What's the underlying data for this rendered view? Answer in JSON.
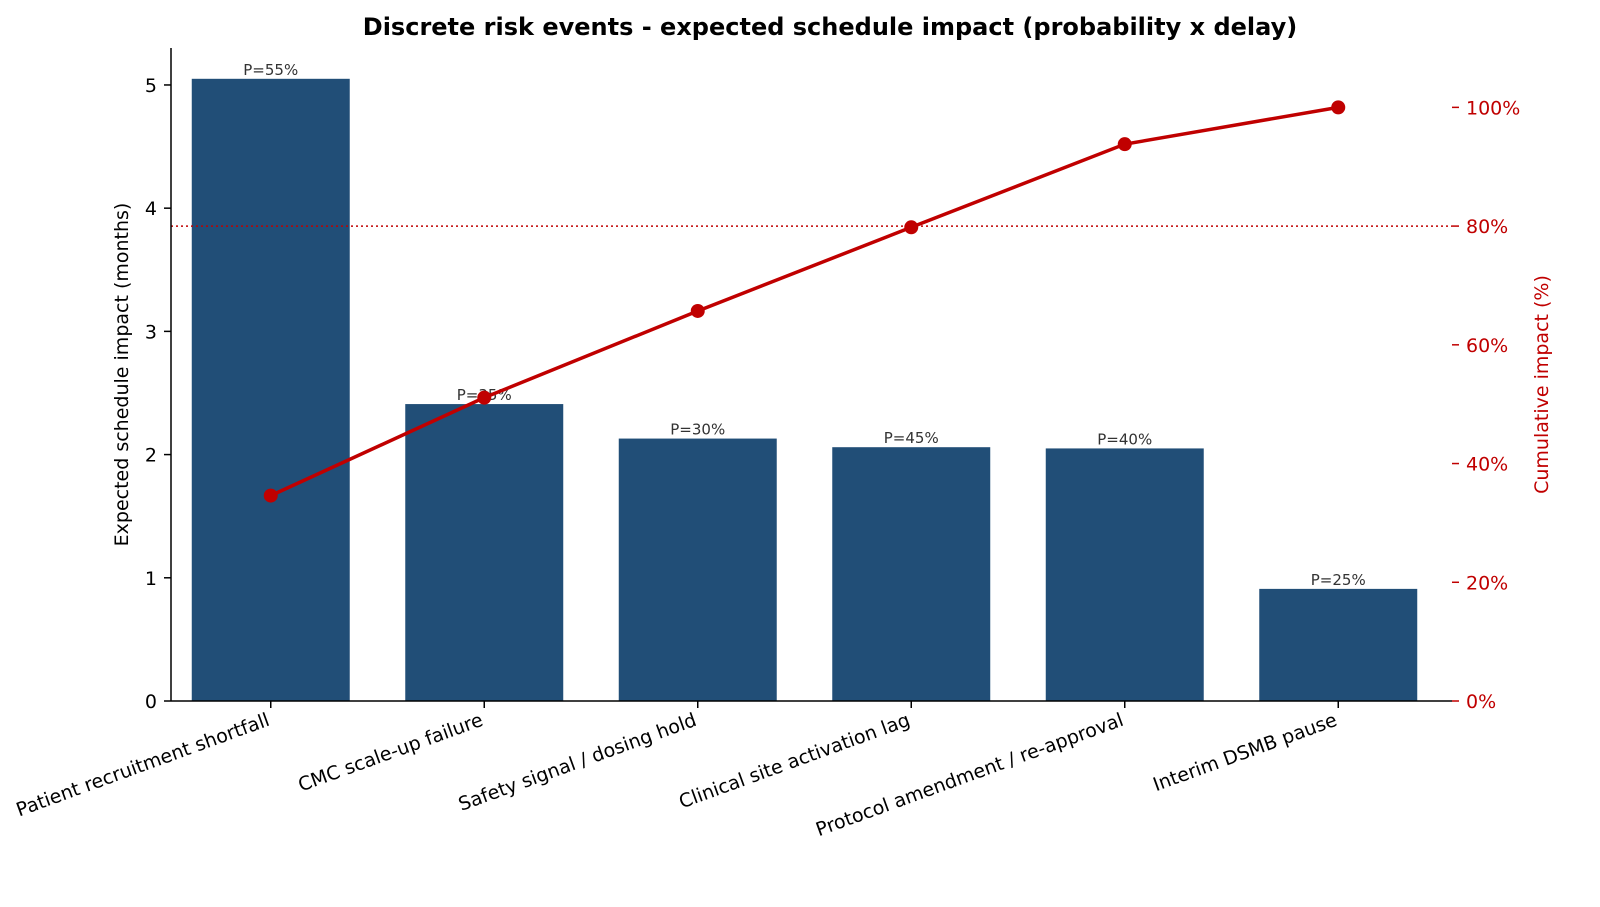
{
  "chart_data": {
    "type": "bar",
    "title": "Discrete risk events - expected schedule impact (probability x delay)",
    "xlabel": "",
    "ylabel": "Expected schedule impact  (months)",
    "y2label": "Cumulative impact  (%)",
    "categories": [
      "Patient recruitment shortfall",
      "CMC scale-up failure",
      "Safety signal / dosing hold",
      "Clinical site activation lag",
      "Protocol amendment / re-approval",
      "Interim DSMB pause"
    ],
    "values": [
      5.05,
      2.41,
      2.13,
      2.06,
      2.05,
      0.91
    ],
    "bar_labels": [
      "P=55%",
      "P=35%",
      "P=30%",
      "P=45%",
      "P=40%",
      "P=25%"
    ],
    "cumulative_percent": [
      34.6,
      51.1,
      65.7,
      79.8,
      93.8,
      100.0
    ],
    "ylim": [
      0,
      5.3
    ],
    "y2lim": [
      0,
      110
    ],
    "yticks": [
      0,
      1,
      2,
      3,
      4,
      5
    ],
    "y2ticks": [
      0,
      20,
      40,
      60,
      80,
      100
    ],
    "y2tick_labels": [
      "0%",
      "20%",
      "40%",
      "60%",
      "80%",
      "100%"
    ],
    "reference_line_percent": 80,
    "grid": false,
    "colors": {
      "bar": "#214e77",
      "line": "#c00000",
      "axis": "#000000",
      "right_axis": "#c00000"
    }
  }
}
